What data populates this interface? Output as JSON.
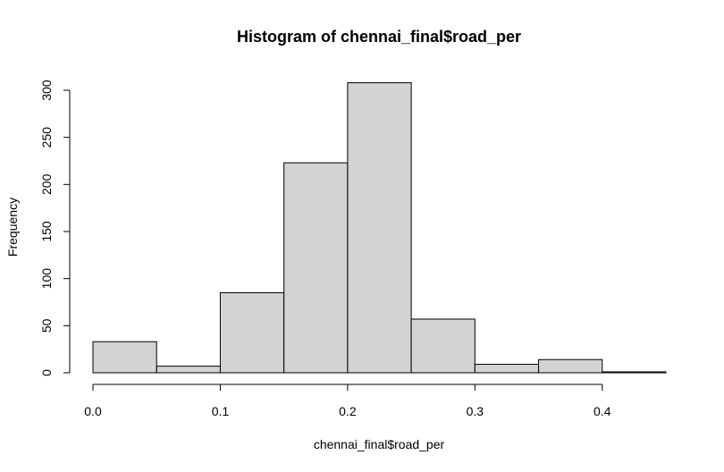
{
  "chart_data": {
    "type": "bar",
    "title": "Histogram of chennai_final$road_per",
    "xlabel": "chennai_final$road_per",
    "ylabel": "Frequency",
    "bins": [
      {
        "from": 0.0,
        "to": 0.05,
        "count": 33
      },
      {
        "from": 0.05,
        "to": 0.1,
        "count": 7
      },
      {
        "from": 0.1,
        "to": 0.15,
        "count": 85
      },
      {
        "from": 0.15,
        "to": 0.2,
        "count": 223
      },
      {
        "from": 0.2,
        "to": 0.25,
        "count": 308
      },
      {
        "from": 0.25,
        "to": 0.3,
        "count": 57
      },
      {
        "from": 0.3,
        "to": 0.35,
        "count": 9
      },
      {
        "from": 0.35,
        "to": 0.4,
        "count": 14
      },
      {
        "from": 0.4,
        "to": 0.45,
        "count": 1
      }
    ],
    "xticks": [
      "0.0",
      "0.1",
      "0.2",
      "0.3",
      "0.4"
    ],
    "xtick_values": [
      0.0,
      0.1,
      0.2,
      0.3,
      0.4
    ],
    "yticks": [
      "0",
      "50",
      "100",
      "150",
      "200",
      "250",
      "300"
    ],
    "ytick_values": [
      0,
      50,
      100,
      150,
      200,
      250,
      300
    ],
    "xlim": [
      0.0,
      0.45
    ],
    "ylim": [
      0,
      300
    ],
    "bar_fill": "#d3d3d3",
    "grid": false
  }
}
